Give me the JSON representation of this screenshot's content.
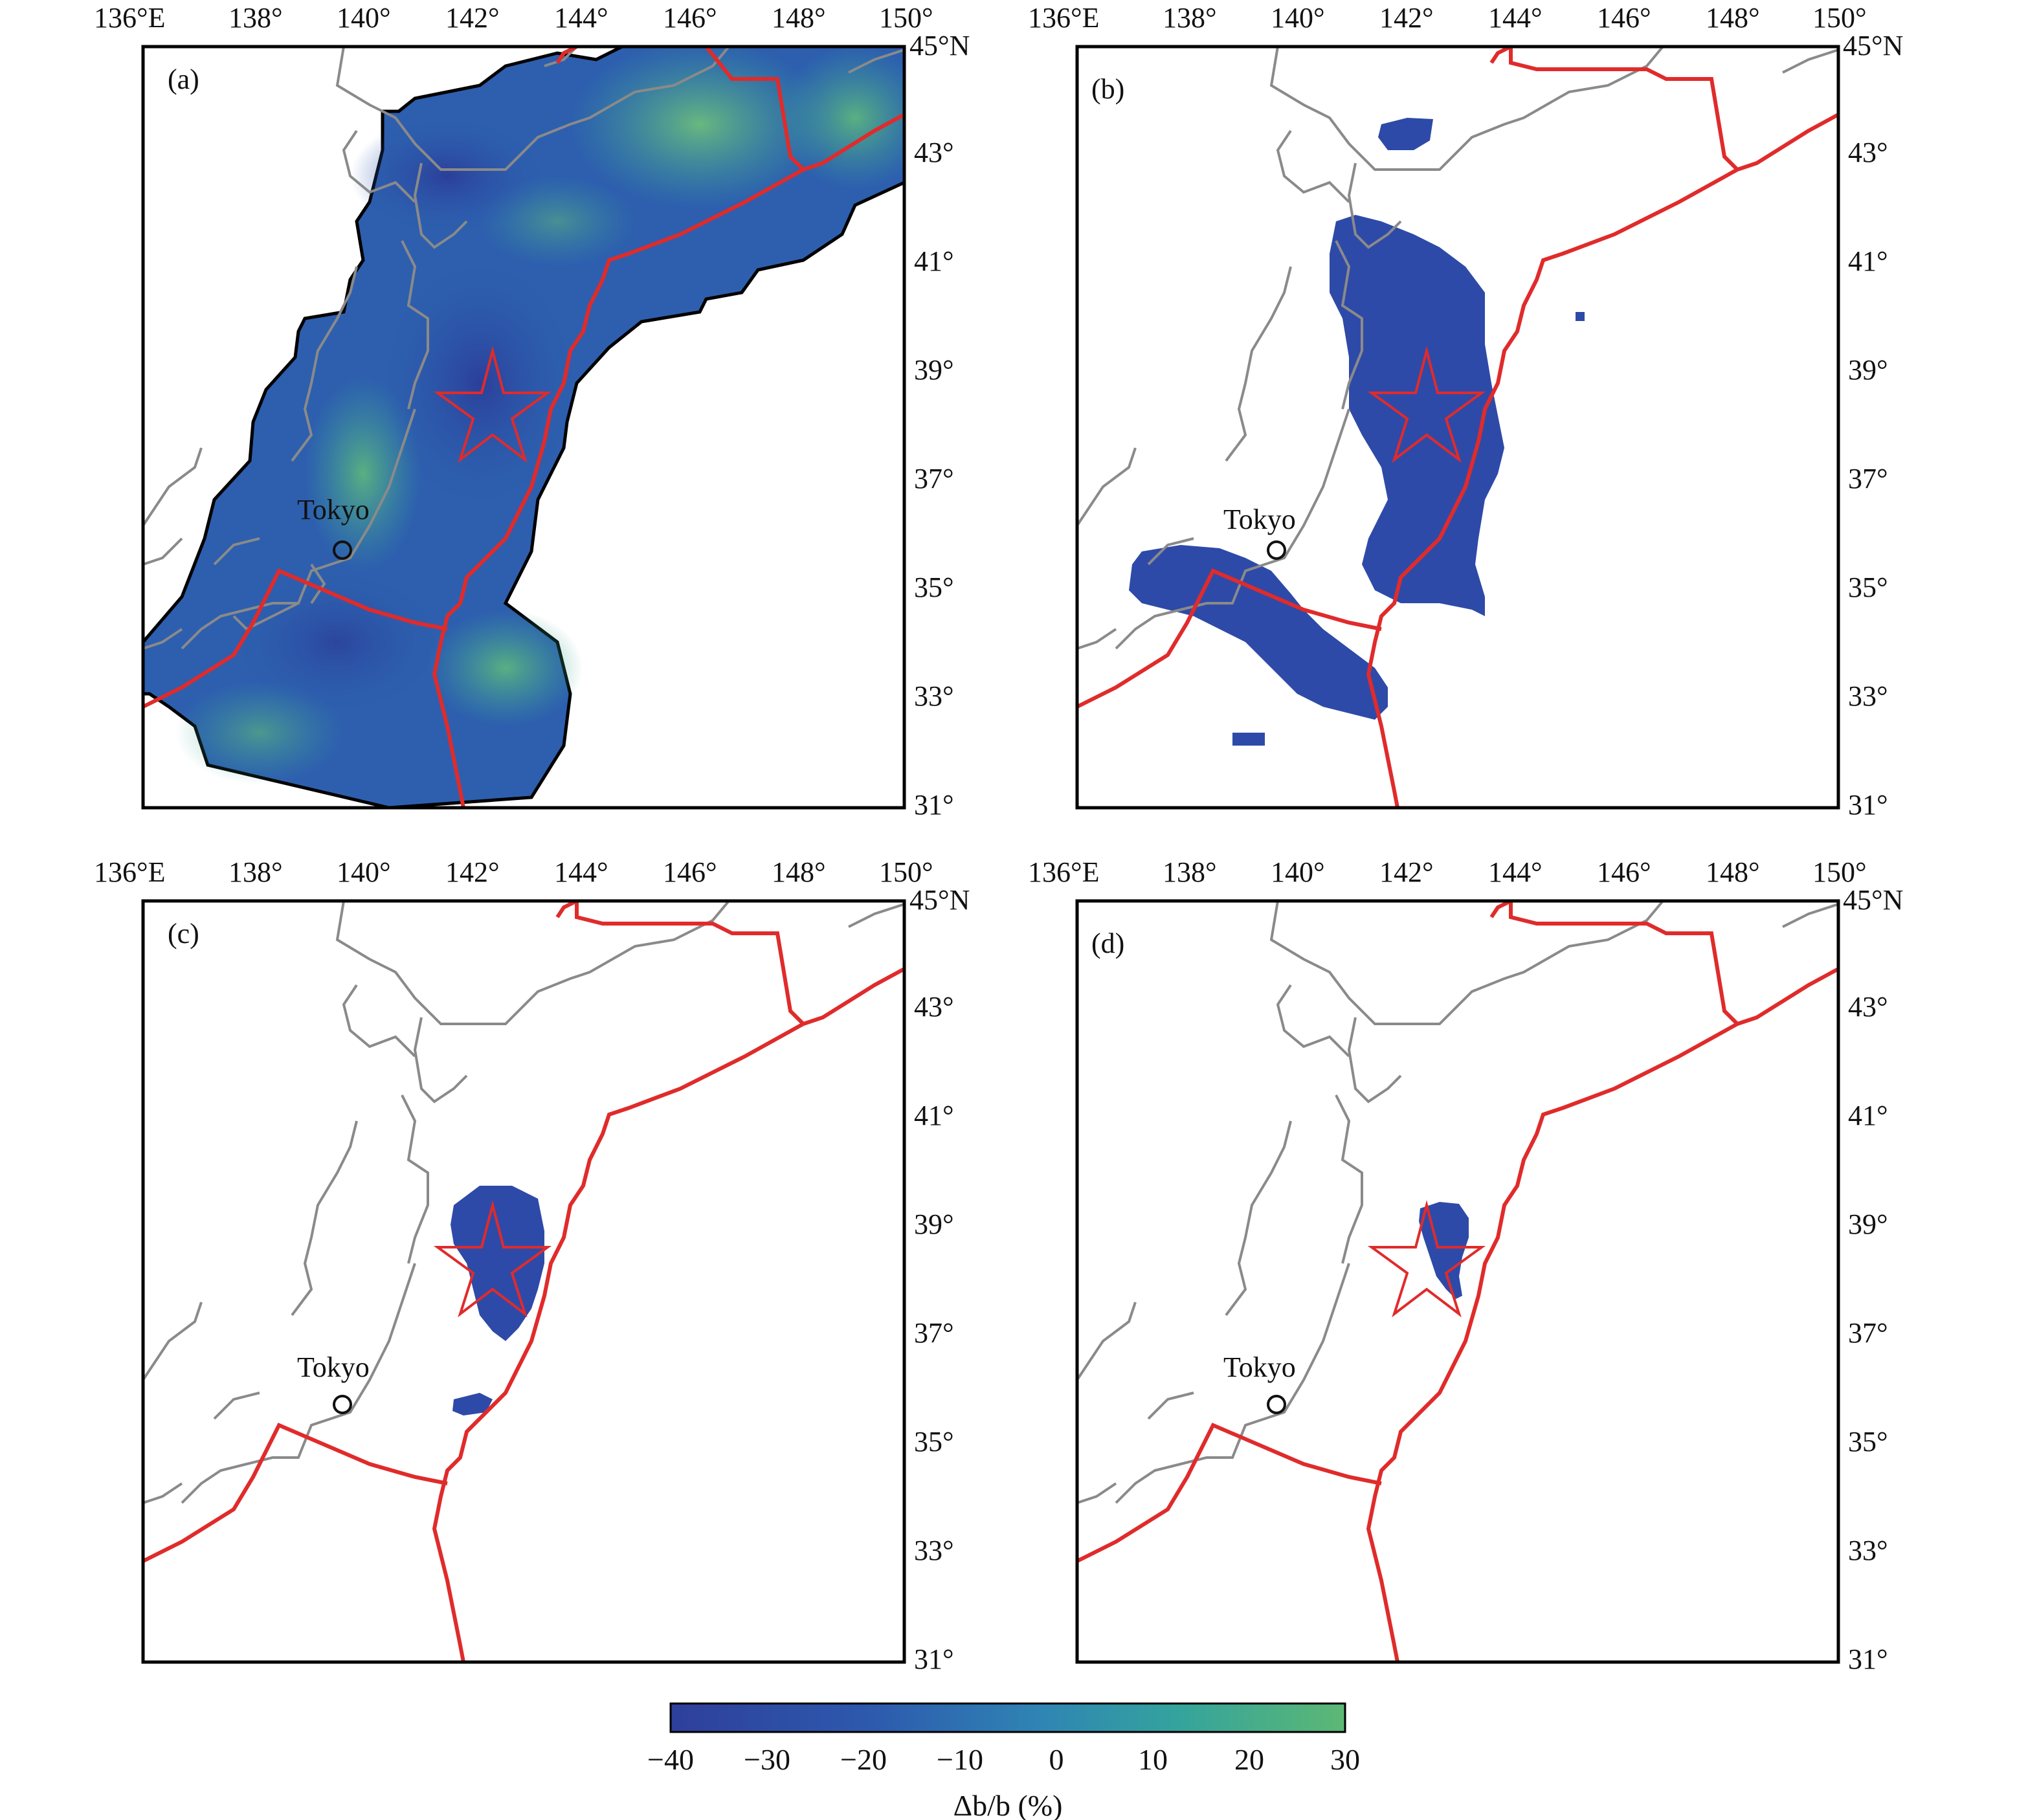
{
  "figure": {
    "longitude_ticks": [
      "136°E",
      "138°",
      "140°",
      "142°",
      "144°",
      "146°",
      "148°",
      "150°"
    ],
    "latitude_ticks": [
      "45°N",
      "43°",
      "41°",
      "39°",
      "37°",
      "35°",
      "33°",
      "31°"
    ],
    "extent": {
      "lon_min": 136,
      "lon_max": 150,
      "lat_min": 31,
      "lat_max": 45
    },
    "city": {
      "name": "Tokyo",
      "lon": 139.6,
      "lat": 35.7
    },
    "epicenter": {
      "lon": 142.4,
      "lat": 38.3
    },
    "colors": {
      "plate_boundary": "#e02b2b",
      "coastline": "#8a8a8a",
      "epicenter_star": "#e02b2b",
      "ramp_low": "#2e3f9c",
      "ramp_mid": "#2f85b4",
      "ramp_high": "#5cb874"
    },
    "panels": [
      {
        "id": "a",
        "label": "(a)",
        "content": "full delta-b/b field over Japan"
      },
      {
        "id": "b",
        "label": "(b)",
        "content": "regions of strongest b-value decrease"
      },
      {
        "id": "c",
        "label": "(c)",
        "content": "anomaly concentrated near epicenter"
      },
      {
        "id": "d",
        "label": "(d)",
        "content": "smallest anomaly at epicenter"
      }
    ],
    "colorbar": {
      "ticks": [
        "−40",
        "−30",
        "−20",
        "−10",
        "0",
        "10",
        "20",
        "30"
      ],
      "range": [
        -40,
        30
      ],
      "title": "Δb/b (%)"
    }
  }
}
